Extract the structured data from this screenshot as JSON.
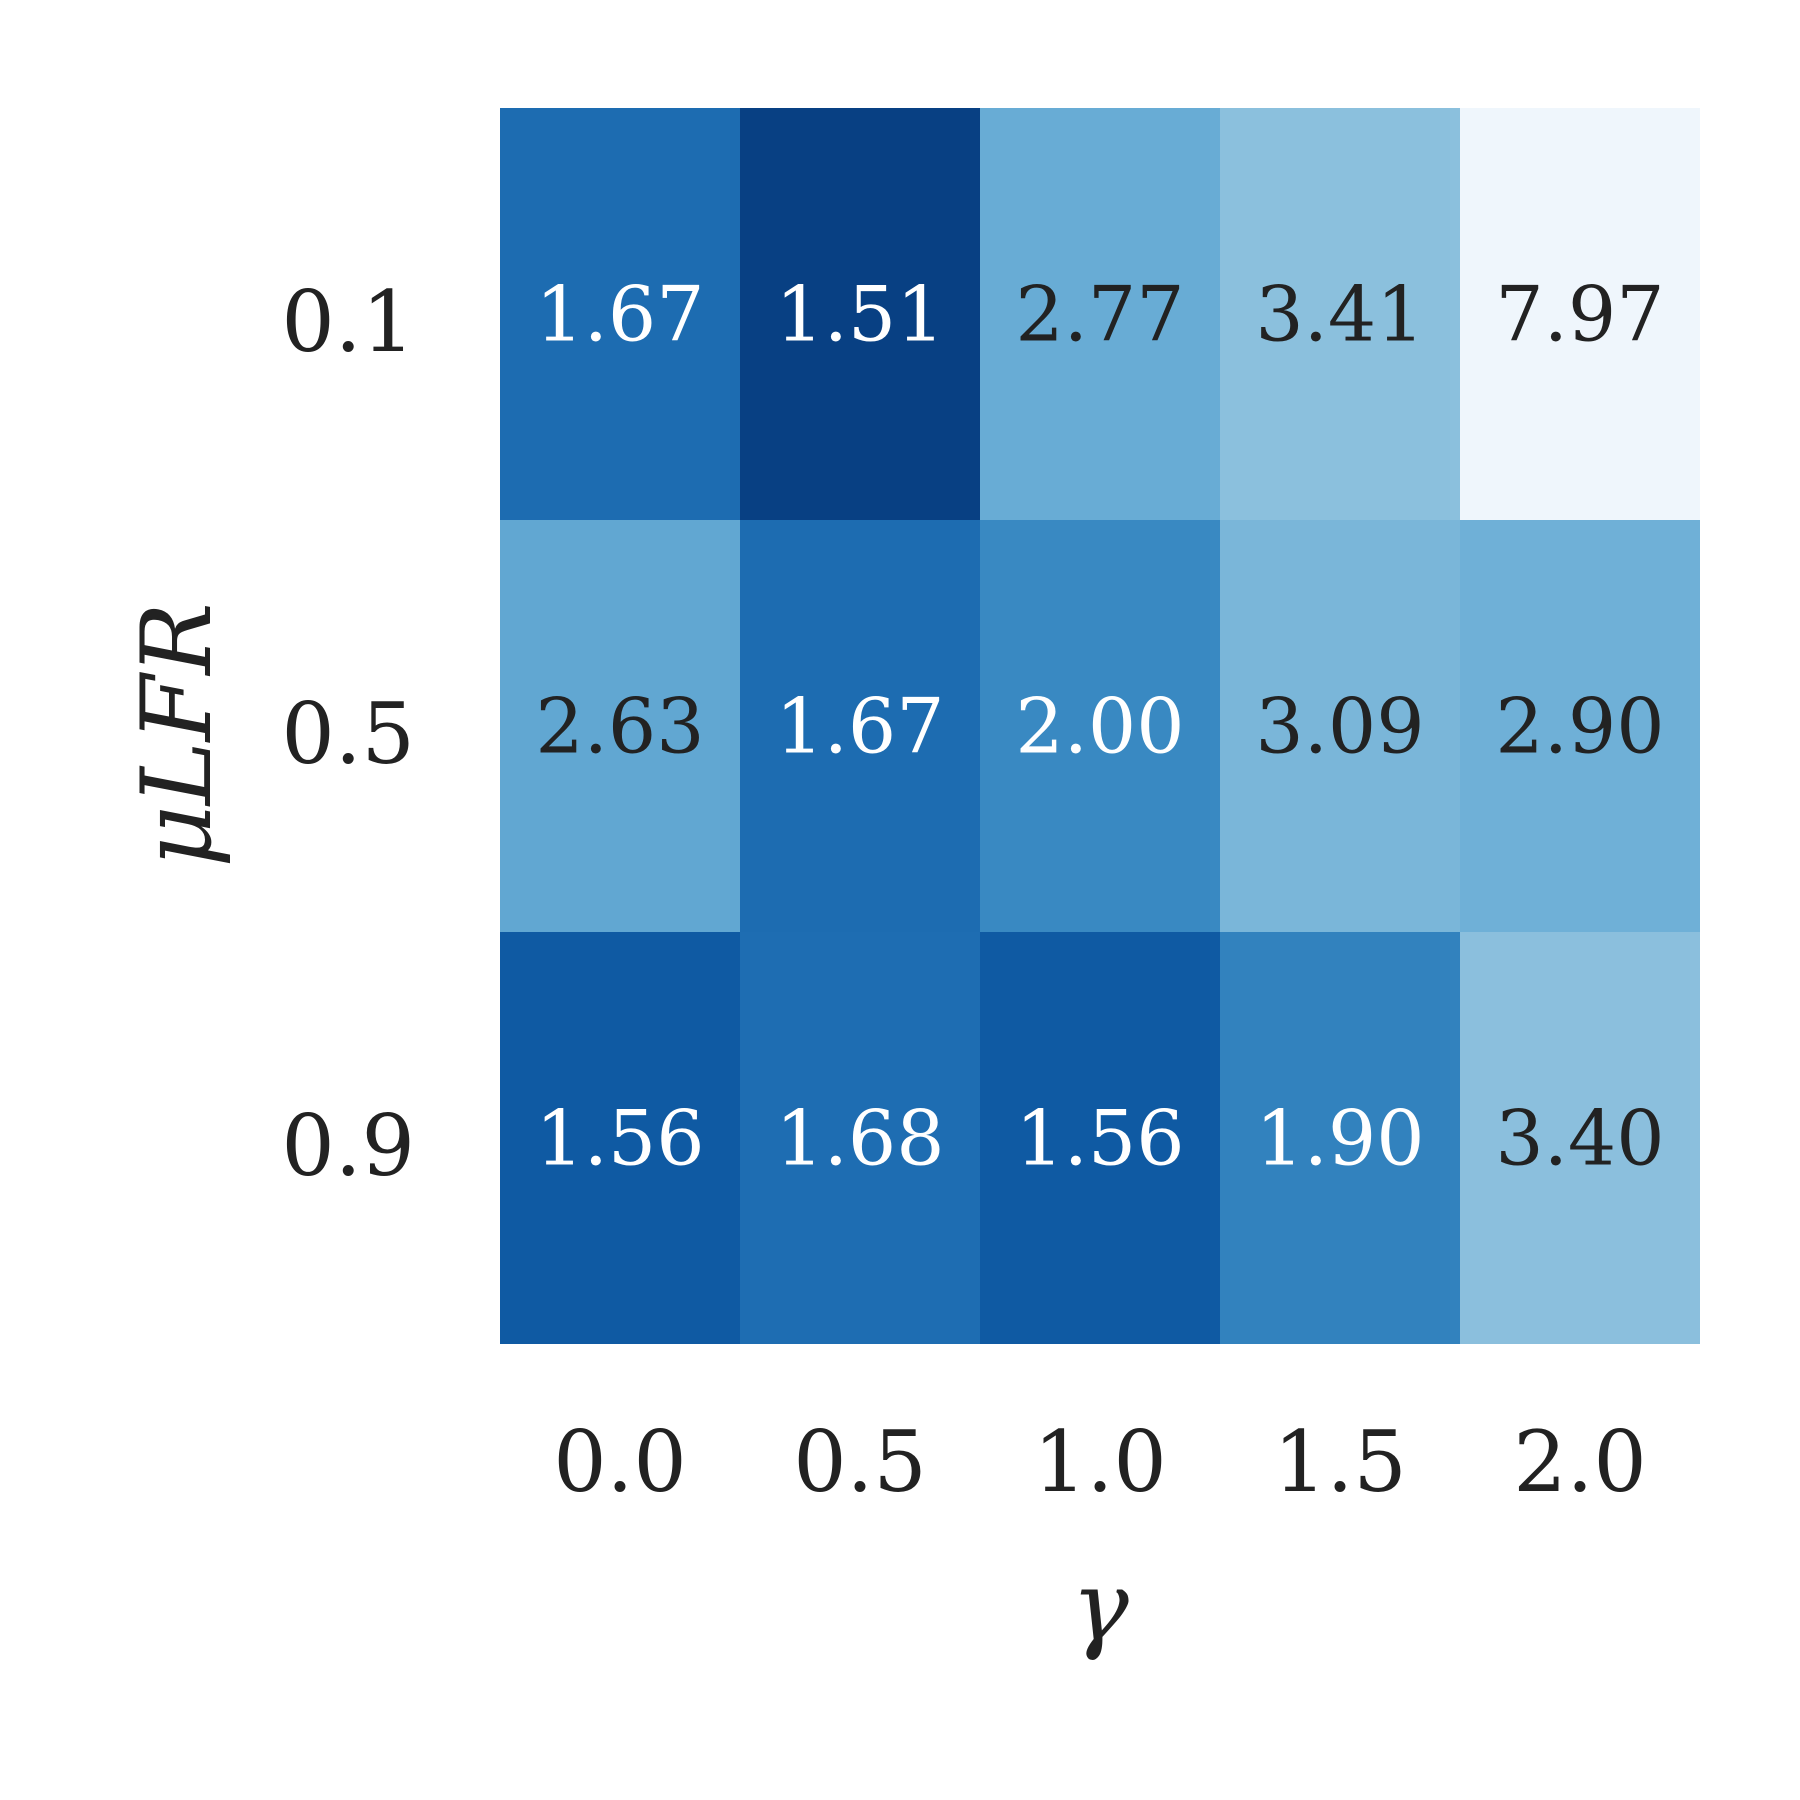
{
  "chart_data": {
    "type": "heatmap",
    "xlabel": "γ",
    "ylabel": "μLFR",
    "x_categories": [
      "0.0",
      "0.5",
      "1.0",
      "1.5",
      "2.0"
    ],
    "y_categories": [
      "0.1",
      "0.5",
      "0.9"
    ],
    "values": [
      [
        1.67,
        1.51,
        2.77,
        3.41,
        7.97
      ],
      [
        2.63,
        1.67,
        2.0,
        3.09,
        2.9
      ],
      [
        1.56,
        1.68,
        1.56,
        1.9,
        3.4
      ]
    ],
    "value_labels": [
      [
        "1.67",
        "1.51",
        "2.77",
        "3.41",
        "7.97"
      ],
      [
        "2.63",
        "1.67",
        "2.00",
        "3.09",
        "2.90"
      ],
      [
        "1.56",
        "1.68",
        "1.56",
        "1.90",
        "3.40"
      ]
    ],
    "colormap": "Blues",
    "colors": {
      "light_text": "#ffffff",
      "dark_text": "#222222"
    }
  }
}
